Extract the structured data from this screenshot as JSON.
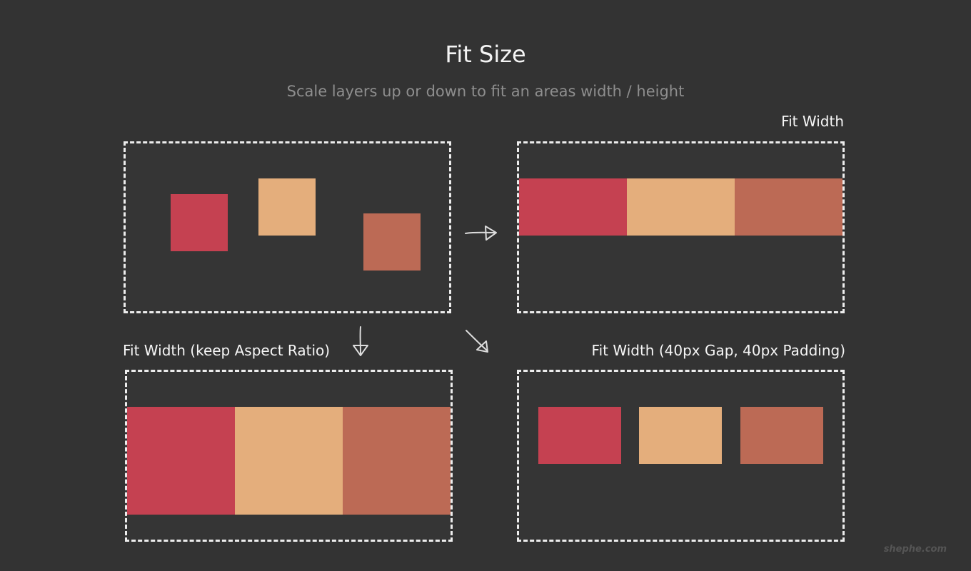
{
  "header": {
    "title": "Fit Size",
    "subtitle": "Scale layers up or down to fit an areas width / height"
  },
  "panels": {
    "source": {
      "label": ""
    },
    "fit_width": {
      "label": "Fit Width"
    },
    "fit_width_aspect": {
      "label": "Fit Width (keep Aspect Ratio)"
    },
    "fit_width_gap": {
      "label": "Fit Width (40px Gap, 40px Padding)"
    }
  },
  "colors": {
    "background": "#333333",
    "red": "#c54151",
    "peach": "#e4ae7c",
    "rust": "#bc6a55",
    "dashed_border": "#ededed"
  },
  "watermark": "shephe.com"
}
